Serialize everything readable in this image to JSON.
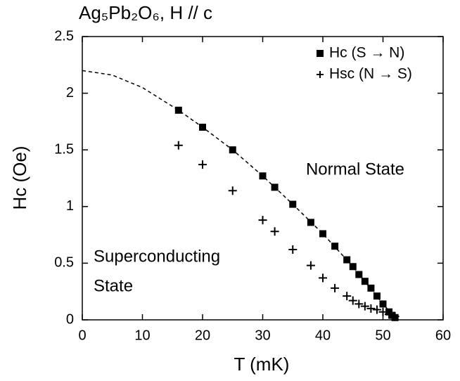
{
  "chart_data": {
    "type": "scatter",
    "title": "Ag₅Pb₂O₆, H // c",
    "xlabel": "T (mK)",
    "ylabel": "Hc (Oe)",
    "xlim": [
      0,
      60
    ],
    "xticks": [
      0,
      10,
      20,
      30,
      40,
      50,
      60
    ],
    "ylim": [
      0,
      2.5
    ],
    "yticks": [
      0,
      0.5,
      1,
      1.5,
      2,
      2.5
    ],
    "legend": "upper right",
    "annotations": [
      "Normal State",
      "Superconducting",
      "State"
    ],
    "series": [
      {
        "name": "Hc  (S → N)",
        "marker": "square",
        "color": "#000000",
        "x": [
          16,
          20,
          25,
          30,
          32,
          35,
          38,
          40,
          42,
          44,
          45,
          46,
          47,
          48,
          49,
          50,
          51,
          51.5,
          52
        ],
        "values": [
          1.85,
          1.7,
          1.5,
          1.27,
          1.17,
          1.02,
          0.86,
          0.76,
          0.65,
          0.53,
          0.47,
          0.4,
          0.34,
          0.28,
          0.21,
          0.14,
          0.07,
          0.04,
          0.02
        ]
      },
      {
        "name": "Hsc (N → S)",
        "marker": "plus",
        "color": "#000000",
        "x": [
          16,
          20,
          25,
          30,
          32,
          35,
          38,
          40,
          42,
          44,
          45,
          46,
          47,
          48,
          49,
          50,
          51,
          52
        ],
        "values": [
          1.54,
          1.37,
          1.14,
          0.88,
          0.78,
          0.62,
          0.48,
          0.37,
          0.28,
          0.21,
          0.17,
          0.14,
          0.12,
          0.1,
          0.09,
          0.07,
          0.05,
          0.03
        ]
      },
      {
        "marker": "dashed-line",
        "color": "#000000",
        "x": [
          0,
          5,
          10,
          16,
          20,
          25,
          30,
          35,
          40,
          45,
          50,
          52
        ],
        "values": [
          2.2,
          2.16,
          2.05,
          1.85,
          1.7,
          1.5,
          1.27,
          1.02,
          0.76,
          0.47,
          0.14,
          0.02
        ]
      }
    ]
  }
}
